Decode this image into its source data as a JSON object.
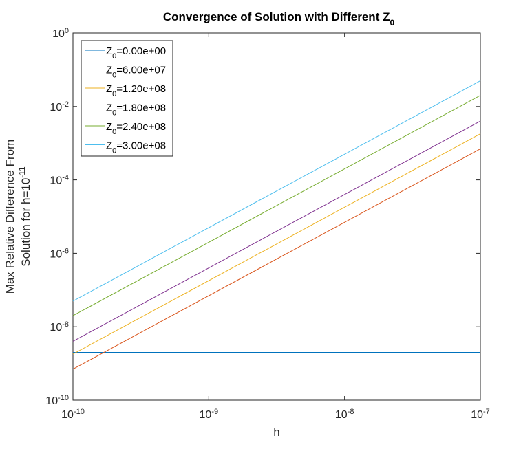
{
  "chart_data": {
    "type": "line",
    "title": {
      "main": "Convergence of Solution with Different Z",
      "sub": "0"
    },
    "xlabel": "h",
    "ylabel": {
      "line1": "Max Relative Difference From",
      "line2": "Solution for h=10",
      "line2_sup": "-11"
    },
    "xscale": "log",
    "yscale": "log",
    "xlim": [
      1e-10,
      1e-07
    ],
    "ylim": [
      1e-10,
      1
    ],
    "xticks": [
      {
        "value": 1e-10,
        "base": "10",
        "exp": "-10"
      },
      {
        "value": 1e-09,
        "base": "10",
        "exp": "-9"
      },
      {
        "value": 1e-08,
        "base": "10",
        "exp": "-8"
      },
      {
        "value": 1e-07,
        "base": "10",
        "exp": "-7"
      }
    ],
    "yticks": [
      {
        "value": 1e-10,
        "base": "10",
        "exp": "-10"
      },
      {
        "value": 1e-08,
        "base": "10",
        "exp": "-8"
      },
      {
        "value": 1e-06,
        "base": "10",
        "exp": "-6"
      },
      {
        "value": 0.0001,
        "base": "10",
        "exp": "-4"
      },
      {
        "value": 0.01,
        "base": "10",
        "exp": "-2"
      },
      {
        "value": 1,
        "base": "10",
        "exp": "0"
      }
    ],
    "grid": false,
    "legend_position": "top-left",
    "x": [
      1e-10,
      1e-07
    ],
    "series": [
      {
        "name": "Z0=0.00e+00",
        "label_base": "Z",
        "label_sub": "0",
        "label_rest": "=0.00e+00",
        "color": "#0072BD",
        "values": [
          2e-09,
          2e-09
        ]
      },
      {
        "name": "Z0=6.00e+07",
        "label_base": "Z",
        "label_sub": "0",
        "label_rest": "=6.00e+07",
        "color": "#D95319",
        "values": [
          7e-10,
          0.0007
        ]
      },
      {
        "name": "Z0=1.20e+08",
        "label_base": "Z",
        "label_sub": "0",
        "label_rest": "=1.20e+08",
        "color": "#EDB120",
        "values": [
          1.8e-09,
          0.0018
        ]
      },
      {
        "name": "Z0=1.80e+08",
        "label_base": "Z",
        "label_sub": "0",
        "label_rest": "=1.80e+08",
        "color": "#7E2F8E",
        "values": [
          4e-09,
          0.004
        ]
      },
      {
        "name": "Z0=2.40e+08",
        "label_base": "Z",
        "label_sub": "0",
        "label_rest": "=2.40e+08",
        "color": "#77AC30",
        "values": [
          2e-08,
          0.02
        ]
      },
      {
        "name": "Z0=3.00e+08",
        "label_base": "Z",
        "label_sub": "0",
        "label_rest": "=3.00e+08",
        "color": "#4DBEEE",
        "values": [
          5e-08,
          0.05
        ]
      }
    ]
  }
}
